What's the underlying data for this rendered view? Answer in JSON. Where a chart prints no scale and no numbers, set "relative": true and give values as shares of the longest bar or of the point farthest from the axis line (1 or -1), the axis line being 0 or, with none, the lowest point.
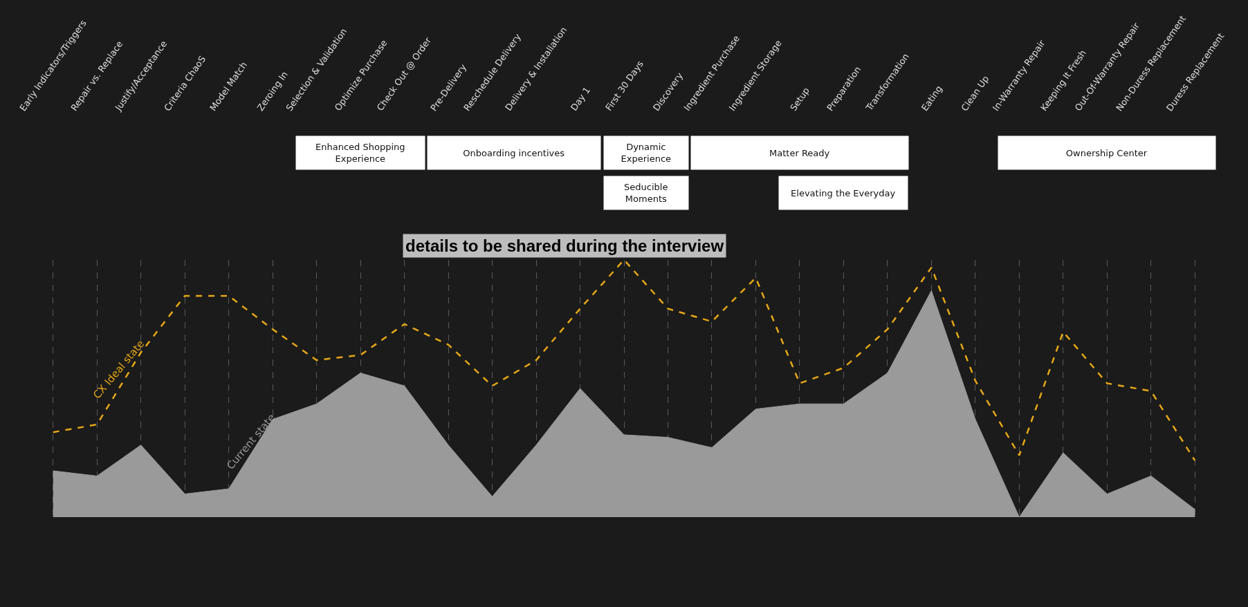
{
  "chart_data": {
    "type": "area",
    "relative": true,
    "legend": false,
    "grid": "x",
    "categories": [
      "Early Indicators/Triggers",
      "Repair vs. Replace",
      "Justify/Acceptance",
      "Criteria ChaoS",
      "Model Match",
      "Zeroing In",
      "Selection & Validation",
      "Optimize Purchase",
      "Check Out @ Order",
      "Pre-Delivery",
      "Reschedule Delivery",
      "Delivery & Installation",
      "Day 1",
      "First 30 Days",
      "Discovery",
      "Ingredient Purchase",
      "Ingredient Storage",
      "Setup",
      "Preparation",
      "Transformation",
      "Eating",
      "Clean Up",
      "In-Warranty Repair",
      "Keeping It Fresh",
      "Out-Of-Warranty Repair",
      "Non-Duress Replacement",
      "Duress Replacement"
    ],
    "series": [
      {
        "name": "Current state",
        "type": "area",
        "color": "#9a9a9a",
        "values": [
          0.18,
          0.16,
          0.28,
          0.09,
          0.11,
          0.38,
          0.44,
          0.56,
          0.51,
          0.28,
          0.08,
          0.28,
          0.5,
          0.32,
          0.31,
          0.27,
          0.42,
          0.44,
          0.44,
          0.56,
          0.88,
          0.38,
          0,
          0.25,
          0.09,
          0.16,
          0.03
        ]
      },
      {
        "name": "CX Ideal state",
        "type": "line",
        "line_style": "dashed",
        "color": "#e6a817",
        "values": [
          0.33,
          0.36,
          0.64,
          0.86,
          0.86,
          0.73,
          0.61,
          0.63,
          0.75,
          0.67,
          0.51,
          0.61,
          0.81,
          1,
          0.81,
          0.76,
          0.93,
          0.52,
          0.58,
          0.73,
          0.97,
          0.53,
          0.24,
          0.72,
          0.52,
          0.49,
          0.22
        ]
      }
    ],
    "annotations": [
      "Enhanced Shopping Experience",
      "Onboarding incentives",
      "Dynamic Experience",
      "Seducible Moments",
      "Matter Ready",
      "Elevating the Everyday",
      "Ownership Center",
      "details to be shared during the interview"
    ]
  }
}
